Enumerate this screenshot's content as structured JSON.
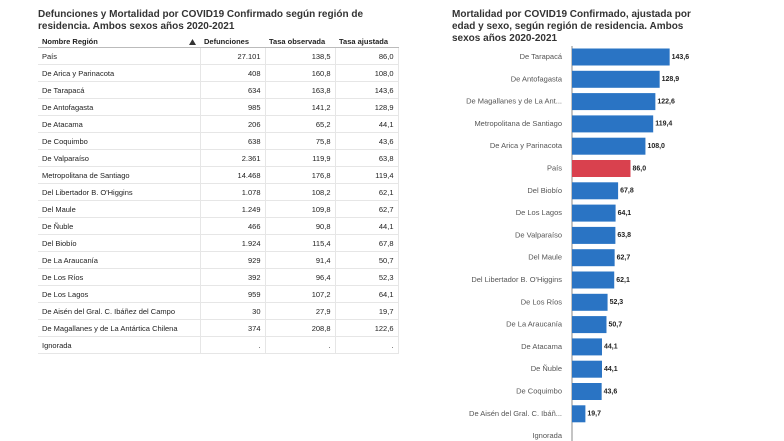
{
  "table": {
    "title": "Defunciones y Mortalidad por COVID19 Confirmado según región de residencia. Ambos sexos años 2020-2021",
    "columns": [
      "Nombre Región",
      "Defunciones",
      "Tasa observada",
      "Tasa ajustada"
    ],
    "rows": [
      [
        "País",
        "27.101",
        "138,5",
        "86,0"
      ],
      [
        "De Arica y Parinacota",
        "408",
        "160,8",
        "108,0"
      ],
      [
        "De Tarapacá",
        "634",
        "163,8",
        "143,6"
      ],
      [
        "De Antofagasta",
        "985",
        "141,2",
        "128,9"
      ],
      [
        "De Atacama",
        "206",
        "65,2",
        "44,1"
      ],
      [
        "De Coquimbo",
        "638",
        "75,8",
        "43,6"
      ],
      [
        "De Valparaíso",
        "2.361",
        "119,9",
        "63,8"
      ],
      [
        "Metropolitana de Santiago",
        "14.468",
        "176,8",
        "119,4"
      ],
      [
        "Del Libertador B. O'Higgins",
        "1.078",
        "108,2",
        "62,1"
      ],
      [
        "Del Maule",
        "1.249",
        "109,8",
        "62,7"
      ],
      [
        "De Ñuble",
        "466",
        "90,8",
        "44,1"
      ],
      [
        "Del Biobío",
        "1.924",
        "115,4",
        "67,8"
      ],
      [
        "De La Araucanía",
        "929",
        "91,4",
        "50,7"
      ],
      [
        "De Los Ríos",
        "392",
        "96,4",
        "52,3"
      ],
      [
        "De Los Lagos",
        "959",
        "107,2",
        "64,1"
      ],
      [
        "De Aisén del Gral. C. Ibáñez del Campo",
        "30",
        "27,9",
        "19,7"
      ],
      [
        "De Magallanes y de La Antártica Chilena",
        "374",
        "208,8",
        "122,6"
      ],
      [
        "Ignorada",
        ".",
        ".",
        "."
      ]
    ]
  },
  "chart_data": {
    "type": "hbar",
    "title": "Mortalidad por COVID19 Confirmado, ajustada por edad y sexo, según región de residencia. Ambos sexos años 2020-2021",
    "categories": [
      "De Tarapacá",
      "De Antofagasta",
      "De Magallanes y de La Ant...",
      "Metropolitana de Santiago",
      "De Arica y Parinacota",
      "País",
      "Del Biobío",
      "De Los Lagos",
      "De Valparaíso",
      "Del Maule",
      "Del Libertador B. O'Higgins",
      "De Los Ríos",
      "De La Araucanía",
      "De Atacama",
      "De Ñuble",
      "De Coquimbo",
      "De Aisén del Gral. C. Ibáñ...",
      "Ignorada"
    ],
    "values": [
      143.6,
      128.9,
      122.6,
      119.4,
      108.0,
      86.0,
      67.8,
      64.1,
      63.8,
      62.7,
      62.1,
      52.3,
      50.7,
      44.1,
      44.1,
      43.6,
      19.7,
      null
    ],
    "value_labels": [
      "143,6",
      "128,9",
      "122,6",
      "119,4",
      "108,0",
      "86,0",
      "67,8",
      "64,1",
      "63,8",
      "62,7",
      "62,1",
      "52,3",
      "50,7",
      "44,1",
      "44,1",
      "43,6",
      "19,7",
      null
    ],
    "colors": [
      "#2a74c4",
      "#2a74c4",
      "#2a74c4",
      "#2a74c4",
      "#2a74c4",
      "#d9414e",
      "#2a74c4",
      "#2a74c4",
      "#2a74c4",
      "#2a74c4",
      "#2a74c4",
      "#2a74c4",
      "#2a74c4",
      "#2a74c4",
      "#2a74c4",
      "#2a74c4",
      "#2a74c4",
      null
    ]
  }
}
